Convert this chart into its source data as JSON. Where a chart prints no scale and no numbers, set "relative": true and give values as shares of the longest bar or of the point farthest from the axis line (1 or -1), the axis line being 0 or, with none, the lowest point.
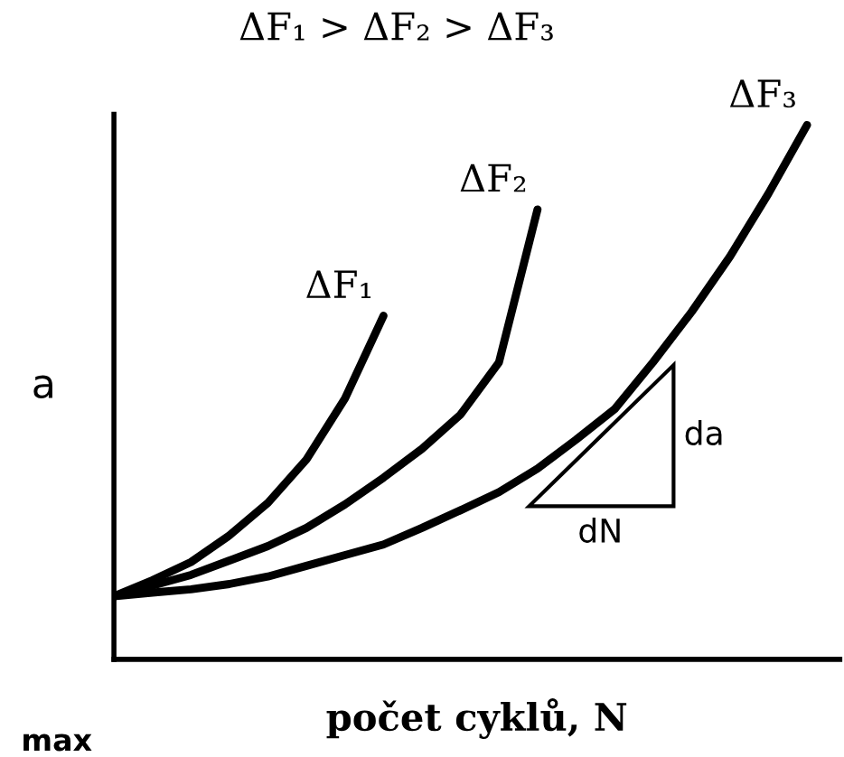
{
  "chart_data": {
    "type": "line",
    "relative": true,
    "title": "ΔF₁ > ΔF₂ > ΔF₃",
    "xlabel": "počet cyklů, N",
    "ylabel": "a",
    "marker": "none",
    "line_style": "solid",
    "annotations": [
      "da",
      "dN",
      "max"
    ],
    "categories": [
      null,
      null,
      null,
      null,
      null,
      null,
      null,
      null,
      null,
      null,
      null,
      null,
      null,
      null,
      null,
      null,
      null,
      null,
      null
    ],
    "series": [
      {
        "name": "ΔF₁",
        "color": "#000000",
        "values": [
          0.118,
          0.148,
          0.182,
          0.232,
          0.293,
          0.374,
          0.488,
          0.643,
          null,
          null,
          null,
          null,
          null,
          null,
          null,
          null,
          null,
          null,
          null
        ]
      },
      {
        "name": "ΔF₂",
        "color": "#000000",
        "values": [
          0.118,
          0.138,
          0.158,
          0.185,
          0.212,
          0.246,
          0.29,
          0.34,
          0.394,
          0.458,
          0.556,
          0.842,
          null,
          null,
          null,
          null,
          null,
          null,
          null
        ]
      },
      {
        "name": "ΔF₃",
        "color": "#000000",
        "values": [
          0.118,
          0.125,
          0.131,
          0.141,
          0.155,
          0.175,
          0.195,
          0.215,
          0.246,
          0.279,
          0.313,
          0.357,
          0.411,
          0.468,
          0.556,
          0.65,
          0.754,
          0.872,
          1.0
        ]
      }
    ]
  }
}
